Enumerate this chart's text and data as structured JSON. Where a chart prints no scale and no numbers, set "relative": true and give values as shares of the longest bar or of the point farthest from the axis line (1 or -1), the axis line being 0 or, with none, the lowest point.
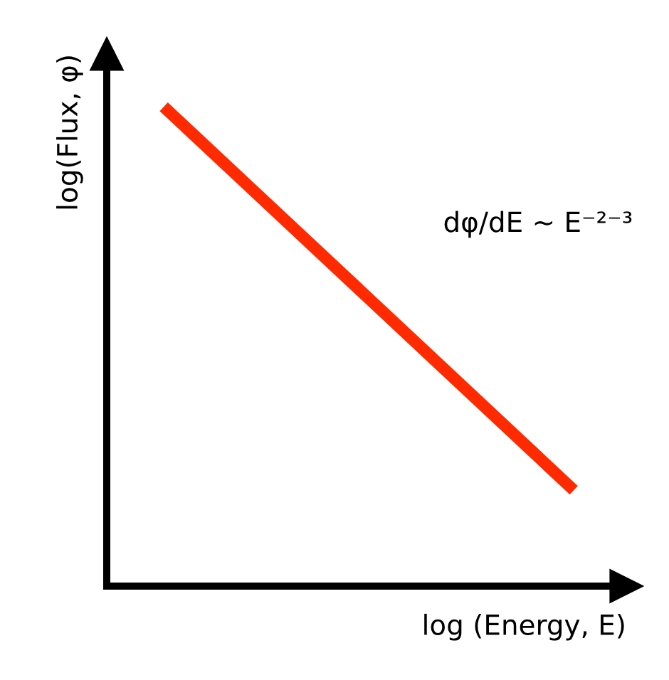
{
  "chart_data": {
    "type": "line",
    "relative": true,
    "xlabel": "log (Energy, E)",
    "ylabel": "log(Flux, φ)",
    "categories": [
      null,
      null
    ],
    "series": [
      {
        "color": "#ff2a00",
        "values": [
          1,
          0.2
        ]
      }
    ],
    "annotations": [
      "dφ/dE ~ E⁻²⁻³"
    ],
    "legend": false,
    "marker": "none",
    "line_style": "solid"
  }
}
